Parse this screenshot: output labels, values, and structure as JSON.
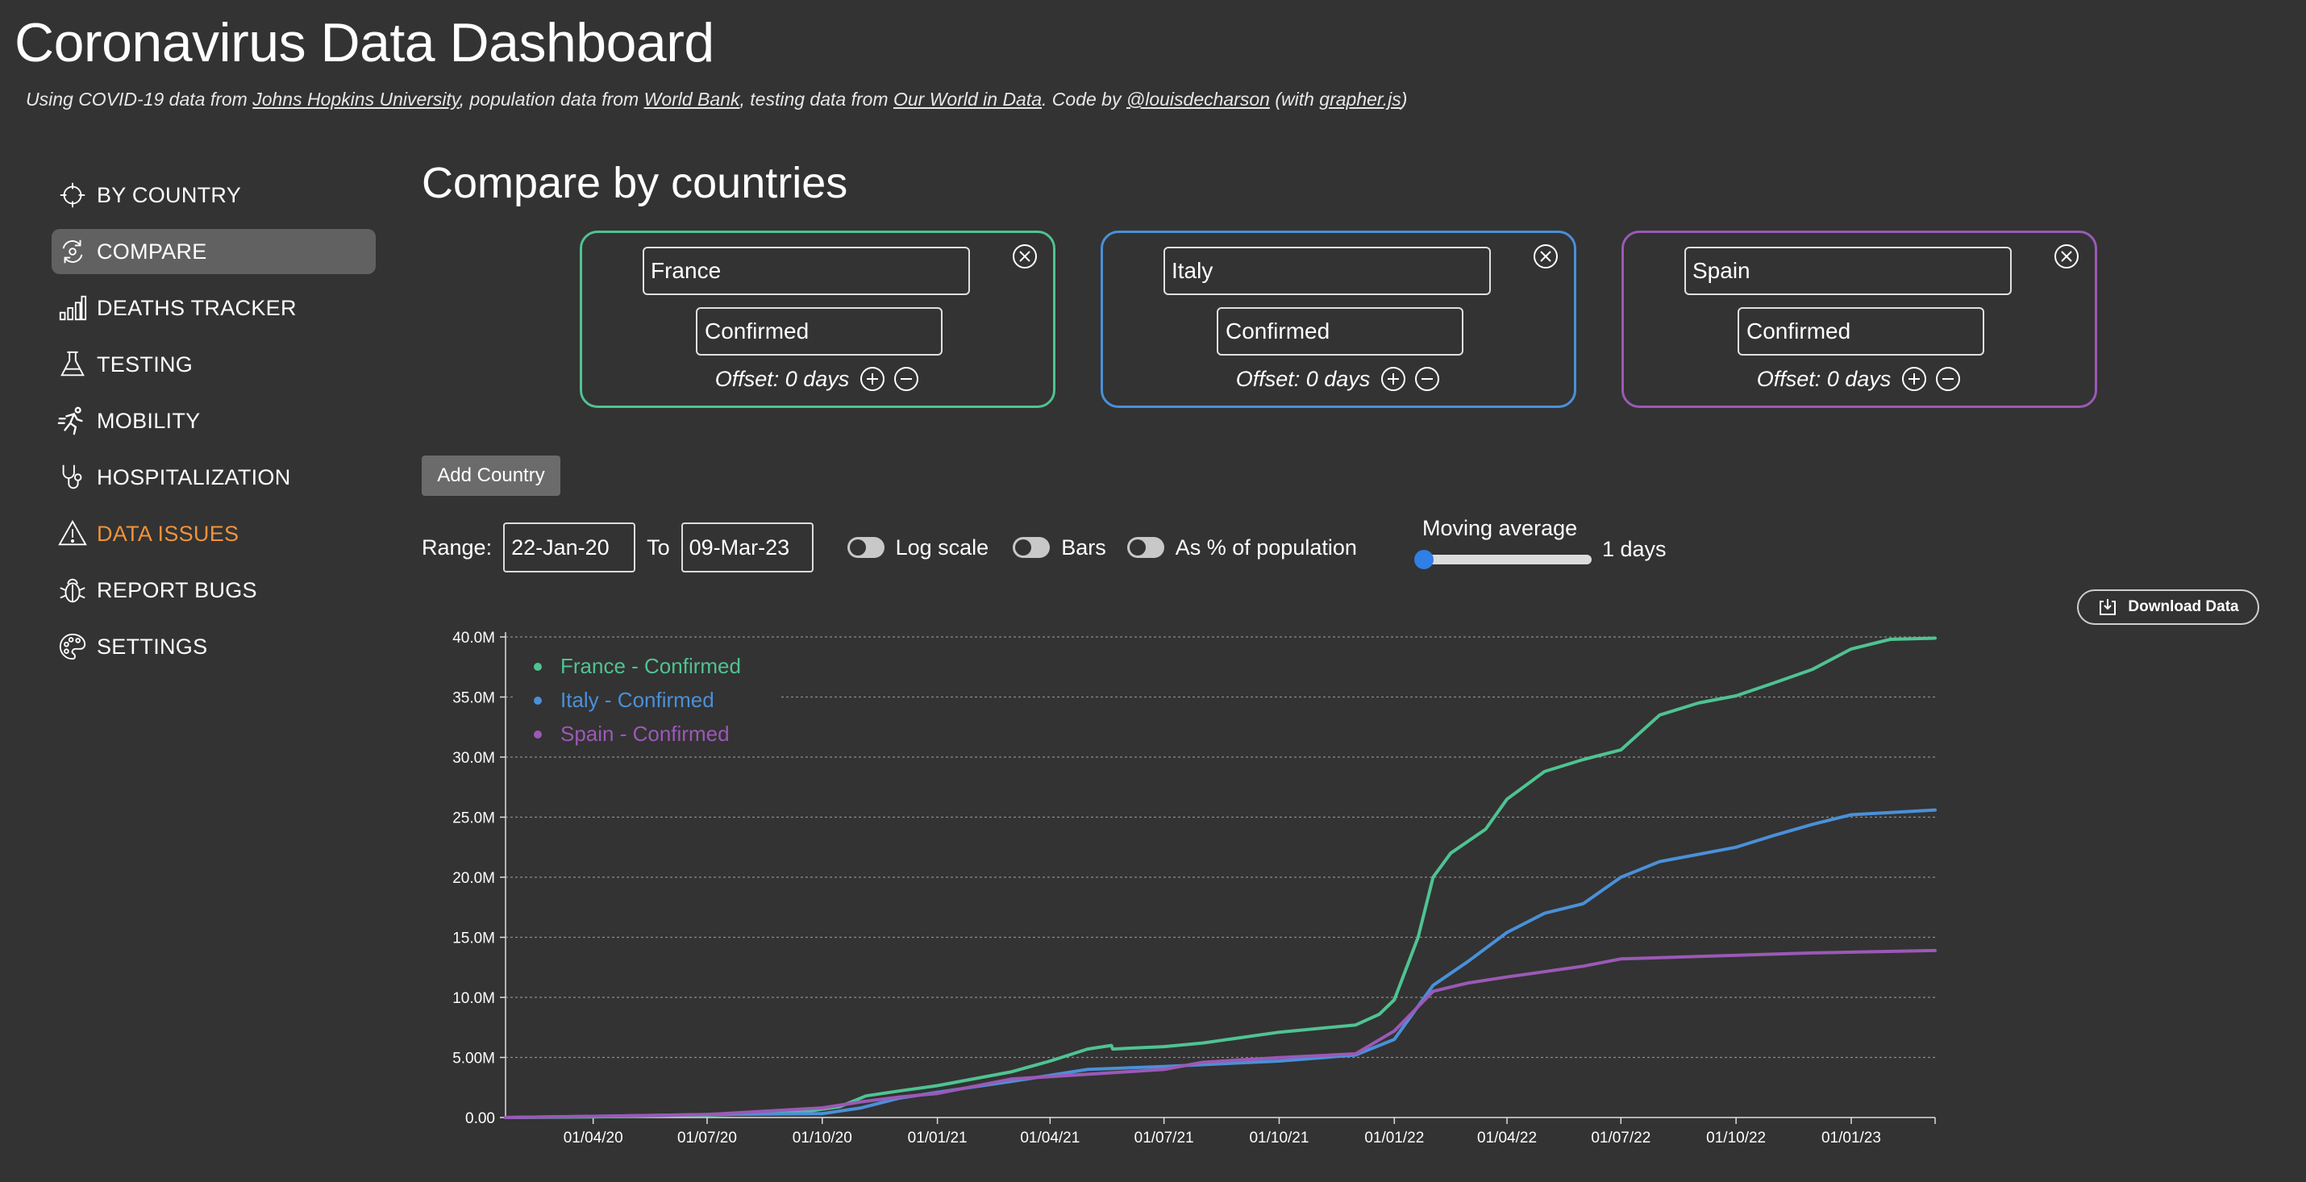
{
  "header": {
    "title": "Coronavirus Data Dashboard",
    "credits": {
      "t1": "Using COVID-19 data from ",
      "l1": "Johns Hopkins University",
      "t2": ", population data from ",
      "l2": "World Bank",
      "t3": ", testing data from ",
      "l3": "Our World in Data",
      "t4": ". Code by ",
      "l4": "@louisdecharson",
      "t5": " (with ",
      "l5": "grapher.js",
      "t6": ")"
    }
  },
  "sidebar": {
    "items": [
      {
        "label": "BY COUNTRY",
        "icon": "crosshair-icon"
      },
      {
        "label": "COMPARE",
        "icon": "compare-icon",
        "active": true
      },
      {
        "label": "DEATHS TRACKER",
        "icon": "bar-chart-icon"
      },
      {
        "label": "TESTING",
        "icon": "flask-icon"
      },
      {
        "label": "MOBILITY",
        "icon": "running-icon"
      },
      {
        "label": "HOSPITALIZATION",
        "icon": "stethoscope-icon"
      },
      {
        "label": "DATA ISSUES",
        "icon": "warning-icon",
        "color": "#f0933a"
      },
      {
        "label": "REPORT BUGS",
        "icon": "bug-icon"
      },
      {
        "label": "SETTINGS",
        "icon": "palette-icon"
      }
    ]
  },
  "main": {
    "title": "Compare by countries",
    "cards": [
      {
        "country": "France",
        "metric": "Confirmed",
        "offset": "Offset: 0 days",
        "color": "#4fc392"
      },
      {
        "country": "Italy",
        "metric": "Confirmed",
        "offset": "Offset: 0 days",
        "color": "#4a90d9"
      },
      {
        "country": "Spain",
        "metric": "Confirmed",
        "offset": "Offset: 0 days",
        "color": "#9b59b6"
      }
    ],
    "add_country": "Add Country",
    "controls": {
      "range_label": "Range:",
      "from": "22-Jan-20",
      "to_label": "To",
      "to": "09-Mar-23",
      "log_scale": "Log scale",
      "bars": "Bars",
      "percent_pop": "As % of population",
      "moving_average_label": "Moving average",
      "moving_average_value": 1,
      "moving_average_unit": "1 days"
    },
    "download": "Download Data"
  },
  "chart_data": {
    "type": "line",
    "title": "",
    "xlabel": "",
    "ylabel": "",
    "ylim": [
      0,
      40000000
    ],
    "yticks": [
      "0.00",
      "5.00M",
      "10.0M",
      "15.0M",
      "20.0M",
      "25.0M",
      "30.0M",
      "35.0M",
      "40.0M"
    ],
    "xticks": [
      "01/04/20",
      "01/07/20",
      "01/10/20",
      "01/01/21",
      "01/04/21",
      "01/07/21",
      "01/10/21",
      "01/01/22",
      "01/04/22",
      "01/07/22",
      "01/10/22",
      "01/01/23"
    ],
    "grid": true,
    "legend": "top-left",
    "series": [
      {
        "name": "France - Confirmed",
        "color": "#4fc392",
        "points": [
          [
            "2020-01-22",
            0
          ],
          [
            "2020-04-01",
            50000
          ],
          [
            "2020-07-01",
            200000
          ],
          [
            "2020-09-15",
            450000
          ],
          [
            "2020-10-15",
            900000
          ],
          [
            "2020-11-05",
            1800000
          ],
          [
            "2020-12-01",
            2200000
          ],
          [
            "2021-01-01",
            2650000
          ],
          [
            "2021-03-01",
            3800000
          ],
          [
            "2021-04-01",
            4700000
          ],
          [
            "2021-05-01",
            5700000
          ],
          [
            "2021-05-20",
            6000000
          ],
          [
            "2021-05-21",
            5700000
          ],
          [
            "2021-07-01",
            5900000
          ],
          [
            "2021-08-01",
            6200000
          ],
          [
            "2021-10-01",
            7100000
          ],
          [
            "2021-12-01",
            7700000
          ],
          [
            "2021-12-20",
            8600000
          ],
          [
            "2022-01-01",
            9800000
          ],
          [
            "2022-01-20",
            15000000
          ],
          [
            "2022-02-01",
            20000000
          ],
          [
            "2022-02-15",
            22000000
          ],
          [
            "2022-03-15",
            24000000
          ],
          [
            "2022-04-01",
            26500000
          ],
          [
            "2022-05-01",
            28800000
          ],
          [
            "2022-06-01",
            29800000
          ],
          [
            "2022-07-01",
            30600000
          ],
          [
            "2022-08-01",
            33500000
          ],
          [
            "2022-09-01",
            34500000
          ],
          [
            "2022-10-01",
            35100000
          ],
          [
            "2022-11-01",
            36200000
          ],
          [
            "2022-12-01",
            37300000
          ],
          [
            "2023-01-01",
            39000000
          ],
          [
            "2023-02-01",
            39800000
          ],
          [
            "2023-03-09",
            39900000
          ]
        ]
      },
      {
        "name": "Italy - Confirmed",
        "color": "#4a90d9",
        "points": [
          [
            "2020-01-22",
            0
          ],
          [
            "2020-04-01",
            100000
          ],
          [
            "2020-07-01",
            240000
          ],
          [
            "2020-10-01",
            320000
          ],
          [
            "2020-11-01",
            800000
          ],
          [
            "2020-12-01",
            1600000
          ],
          [
            "2021-01-01",
            2100000
          ],
          [
            "2021-03-01",
            3000000
          ],
          [
            "2021-05-01",
            4000000
          ],
          [
            "2021-07-01",
            4250000
          ],
          [
            "2021-10-01",
            4700000
          ],
          [
            "2021-12-01",
            5200000
          ],
          [
            "2022-01-01",
            6500000
          ],
          [
            "2022-02-01",
            11000000
          ],
          [
            "2022-03-01",
            13000000
          ],
          [
            "2022-04-01",
            15400000
          ],
          [
            "2022-05-01",
            17000000
          ],
          [
            "2022-06-01",
            17800000
          ],
          [
            "2022-07-01",
            20000000
          ],
          [
            "2022-08-01",
            21300000
          ],
          [
            "2022-10-01",
            22500000
          ],
          [
            "2022-11-01",
            23500000
          ],
          [
            "2022-12-01",
            24400000
          ],
          [
            "2023-01-01",
            25200000
          ],
          [
            "2023-03-09",
            25600000
          ]
        ]
      },
      {
        "name": "Spain - Confirmed",
        "color": "#9b59b6",
        "points": [
          [
            "2020-01-22",
            0
          ],
          [
            "2020-04-01",
            100000
          ],
          [
            "2020-07-01",
            250000
          ],
          [
            "2020-10-01",
            800000
          ],
          [
            "2020-11-01",
            1300000
          ],
          [
            "2020-12-01",
            1700000
          ],
          [
            "2021-01-01",
            2000000
          ],
          [
            "2021-03-01",
            3200000
          ],
          [
            "2021-05-01",
            3600000
          ],
          [
            "2021-07-01",
            4000000
          ],
          [
            "2021-08-01",
            4600000
          ],
          [
            "2021-10-01",
            4980000
          ],
          [
            "2021-12-01",
            5300000
          ],
          [
            "2022-01-01",
            7200000
          ],
          [
            "2022-02-01",
            10500000
          ],
          [
            "2022-03-01",
            11200000
          ],
          [
            "2022-04-01",
            11700000
          ],
          [
            "2022-06-01",
            12600000
          ],
          [
            "2022-07-01",
            13200000
          ],
          [
            "2022-09-01",
            13400000
          ],
          [
            "2022-12-01",
            13700000
          ],
          [
            "2023-03-09",
            13900000
          ]
        ]
      }
    ]
  }
}
